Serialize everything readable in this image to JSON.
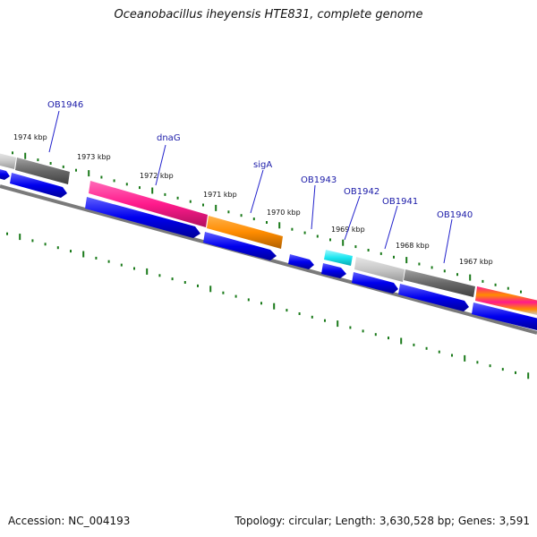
{
  "title": "Oceanobacillus iheyensis HTE831, complete genome",
  "footer": {
    "accession": "Accession: NC_004193",
    "summary": "Topology: circular; Length: 3,630,528 bp; Genes: 3,591"
  },
  "kbp_labels": [
    "1974 kbp",
    "1973 kbp",
    "1972 kbp",
    "1971 kbp",
    "1970 kbp",
    "1969 kbp",
    "1968 kbp",
    "1967 kbp"
  ],
  "gene_labels": [
    "OB1946",
    "dnaG",
    "sigA",
    "OB1943",
    "OB1942",
    "OB1941",
    "OB1940"
  ],
  "colors": {
    "background": "#ffffff",
    "backbone": "#7a7a7a",
    "tick": "#1a7a1a",
    "gene_label": "#1a1aa8",
    "leader_line": "#2222cc",
    "cds_arrow": "#0000ee",
    "dnaG": "#ff1a8c",
    "sigA": "#ff8c00",
    "OB1942": "#1ae6f0",
    "light_gray_gene": "#c8c8c8",
    "dark_gray_gene": "#686868"
  }
}
